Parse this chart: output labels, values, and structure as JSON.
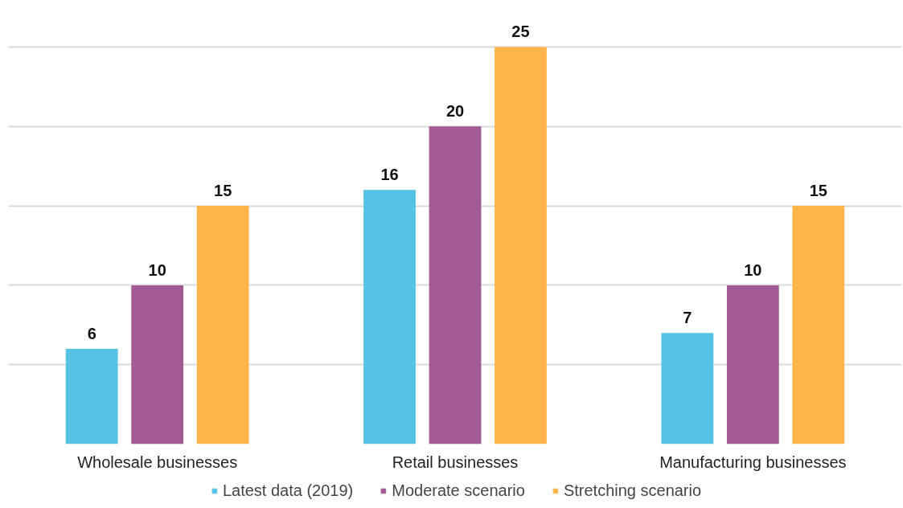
{
  "chart_data": {
    "type": "bar",
    "categories": [
      "Wholesale businesses",
      "Retail businesses",
      "Manufacturing businesses"
    ],
    "series": [
      {
        "name": "Latest data (2019)",
        "color": "#56c2e6",
        "values": [
          6,
          16,
          7
        ]
      },
      {
        "name": "Moderate scenario",
        "color": "#a25a95",
        "values": [
          10,
          20,
          10
        ]
      },
      {
        "name": "Stretching scenario",
        "color": "#fdb54a",
        "values": [
          15,
          25,
          15
        ]
      }
    ],
    "tick_labels": "x",
    "grid": "y",
    "legend": "bottom",
    "data_labels": true
  }
}
